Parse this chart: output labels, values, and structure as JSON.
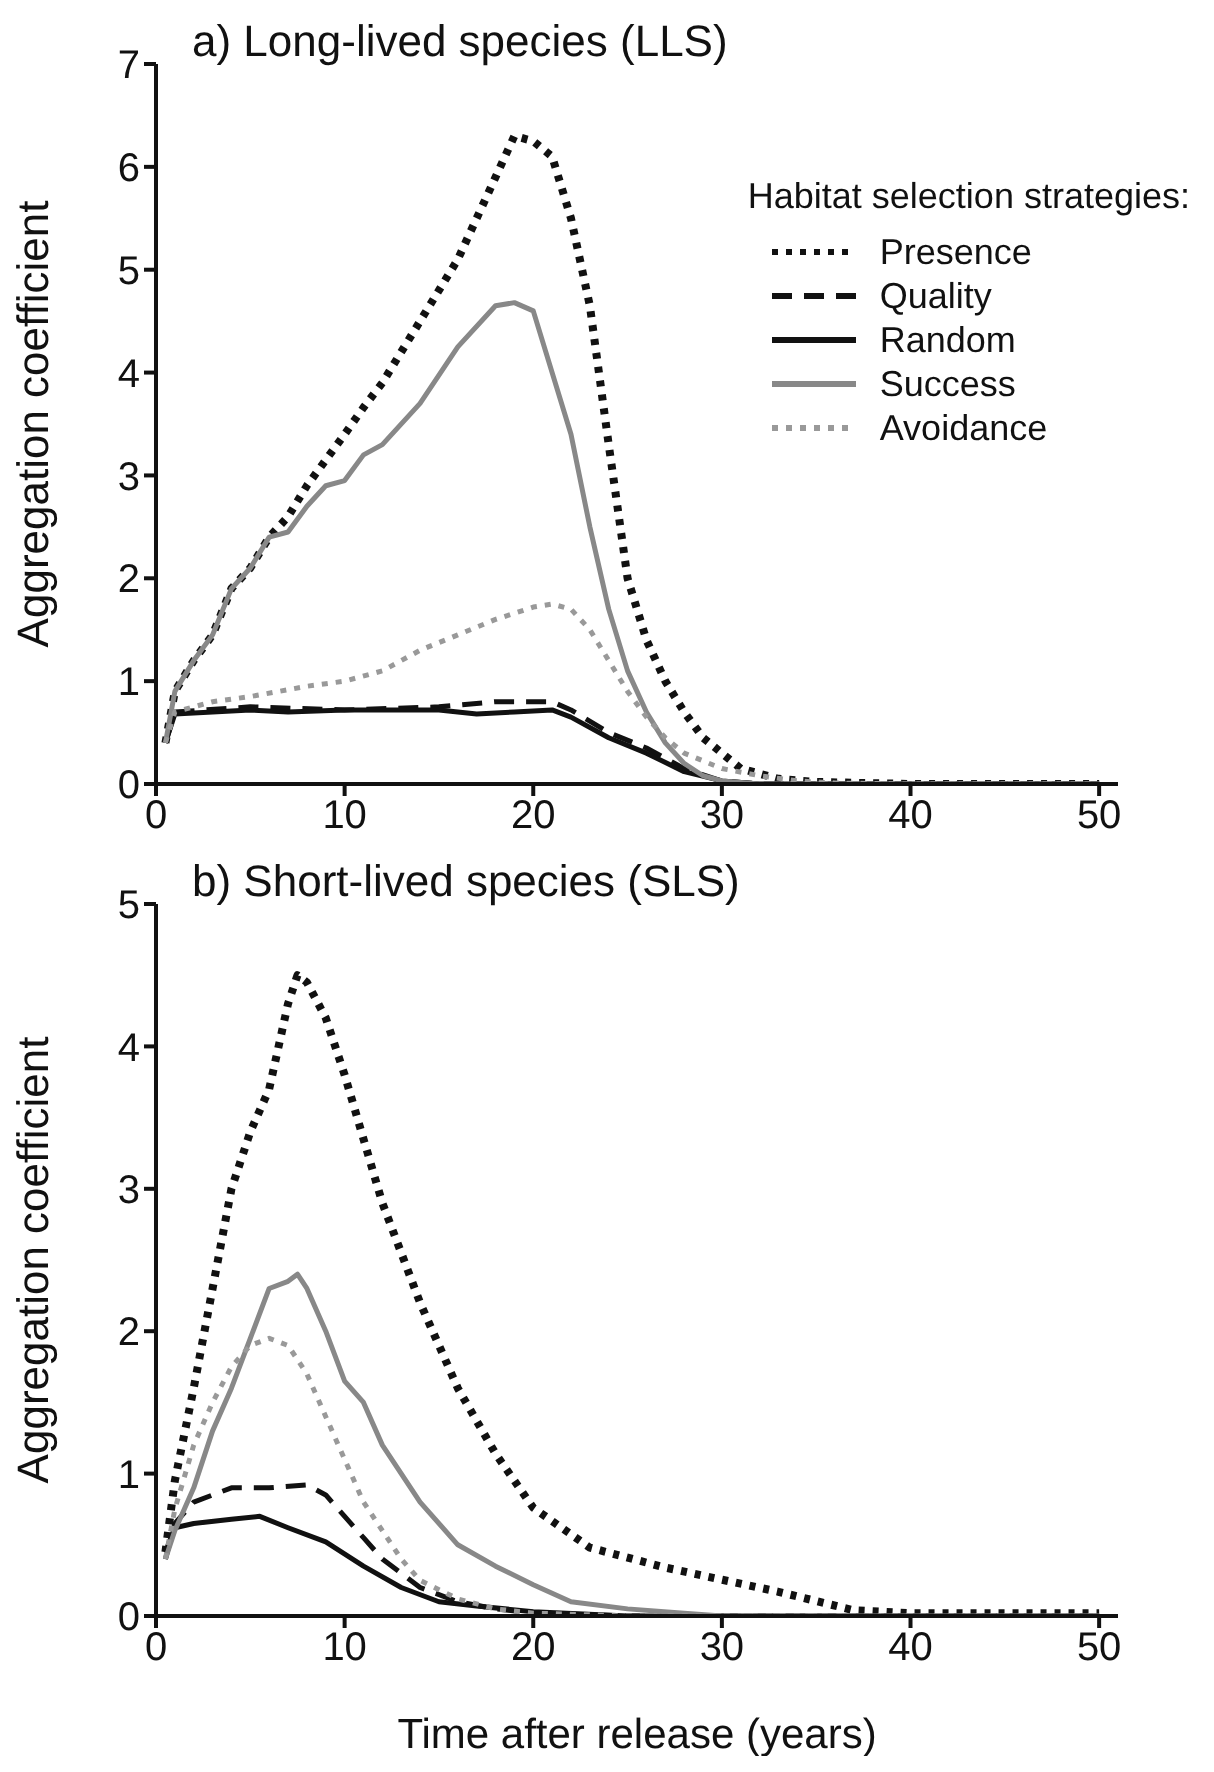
{
  "chart_data": [
    {
      "type": "line",
      "title": "a) Long-lived species (LLS)",
      "ylabel": "Aggregation coefficient",
      "legend_title": "Habitat selection strategies:",
      "legend": "right",
      "marker": "none",
      "xlim": [
        0,
        51
      ],
      "xticks": [
        0,
        10,
        20,
        30,
        40,
        50
      ],
      "ylim": [
        0,
        7
      ],
      "yticks": [
        0,
        1,
        2,
        3,
        4,
        5,
        6,
        7
      ],
      "series": [
        {
          "name": "Presence",
          "color": "#111111",
          "line_style": "dotted",
          "x": [
            0.5,
            1,
            2,
            3,
            4,
            5,
            6,
            7,
            8,
            9,
            10,
            11,
            12,
            14,
            16,
            18,
            19,
            20,
            21,
            22,
            23,
            24,
            25,
            26,
            27,
            28,
            29,
            31,
            33,
            35,
            40,
            45,
            50
          ],
          "values": [
            0.4,
            0.9,
            1.2,
            1.45,
            1.9,
            2.1,
            2.4,
            2.6,
            2.9,
            3.15,
            3.4,
            3.66,
            3.9,
            4.5,
            5.1,
            5.9,
            6.3,
            6.25,
            6.1,
            5.5,
            4.65,
            3.3,
            2.0,
            1.4,
            1.0,
            0.7,
            0.45,
            0.15,
            0.05,
            0.02,
            0,
            0,
            0
          ]
        },
        {
          "name": "Quality",
          "color": "#111111",
          "line_style": "dashed",
          "x": [
            0.5,
            1,
            5,
            10,
            15,
            18,
            21,
            22,
            24,
            26,
            28,
            30,
            32,
            40,
            50
          ],
          "values": [
            0.4,
            0.7,
            0.75,
            0.72,
            0.75,
            0.8,
            0.8,
            0.72,
            0.5,
            0.35,
            0.15,
            0.03,
            0,
            0,
            0
          ]
        },
        {
          "name": "Random",
          "color": "#111111",
          "line_style": "solid",
          "x": [
            0.5,
            1,
            5,
            7,
            10,
            15,
            17,
            19,
            21,
            22,
            24,
            26,
            28,
            30,
            32,
            40,
            50
          ],
          "values": [
            0.4,
            0.68,
            0.72,
            0.7,
            0.72,
            0.72,
            0.68,
            0.7,
            0.72,
            0.65,
            0.45,
            0.3,
            0.12,
            0.03,
            0,
            0,
            0
          ]
        },
        {
          "name": "Success",
          "color": "#888888",
          "line_style": "solid",
          "x": [
            0.5,
            1,
            2,
            3,
            4,
            5,
            6,
            7,
            8,
            9,
            10,
            11,
            12,
            14,
            16,
            18,
            19,
            20,
            22,
            23,
            24,
            25,
            26,
            27,
            28,
            29,
            30,
            32,
            40,
            50
          ],
          "values": [
            0.4,
            0.9,
            1.2,
            1.45,
            1.9,
            2.1,
            2.4,
            2.45,
            2.7,
            2.9,
            2.95,
            3.2,
            3.3,
            3.7,
            4.25,
            4.65,
            4.68,
            4.6,
            3.4,
            2.5,
            1.7,
            1.1,
            0.7,
            0.4,
            0.2,
            0.08,
            0.03,
            0,
            0,
            0
          ]
        },
        {
          "name": "Avoidance",
          "color": "#999999",
          "line_style": "dotted",
          "x": [
            0.5,
            1,
            3,
            5,
            8,
            10,
            12,
            14,
            16,
            18,
            20,
            21,
            22,
            23,
            24,
            25,
            26,
            27,
            28,
            30,
            32,
            34,
            36,
            40,
            50
          ],
          "values": [
            0.4,
            0.7,
            0.8,
            0.85,
            0.95,
            1.0,
            1.1,
            1.3,
            1.45,
            1.6,
            1.72,
            1.75,
            1.7,
            1.5,
            1.2,
            0.9,
            0.65,
            0.45,
            0.3,
            0.15,
            0.08,
            0.03,
            0.01,
            0,
            0
          ]
        }
      ]
    },
    {
      "type": "line",
      "title": "b) Short-lived species (SLS)",
      "xlabel": "Time after release (years)",
      "ylabel": "Aggregation coefficient",
      "marker": "none",
      "xlim": [
        0,
        51
      ],
      "xticks": [
        0,
        10,
        20,
        30,
        40,
        50
      ],
      "ylim": [
        0,
        5
      ],
      "yticks": [
        0,
        1,
        2,
        3,
        4,
        5
      ],
      "series": [
        {
          "color": "#111111",
          "line_style": "dotted",
          "x": [
            0.5,
            1,
            2,
            3,
            4,
            5,
            6,
            7,
            7.5,
            8,
            9,
            10,
            12,
            14,
            16,
            18,
            20,
            23,
            27,
            33,
            37,
            40,
            45,
            50
          ],
          "values": [
            0.45,
            0.95,
            1.6,
            2.3,
            3.0,
            3.4,
            3.7,
            4.3,
            4.5,
            4.45,
            4.2,
            3.8,
            2.9,
            2.2,
            1.6,
            1.14,
            0.76,
            0.48,
            0.34,
            0.17,
            0.04,
            0.02,
            0.02,
            0.02
          ]
        },
        {
          "color": "#111111",
          "line_style": "dashed",
          "x": [
            0.5,
            1,
            2,
            3,
            4,
            6,
            8,
            9,
            10,
            11,
            12,
            13,
            14,
            16,
            18,
            20,
            25,
            50
          ],
          "values": [
            0.4,
            0.65,
            0.8,
            0.85,
            0.9,
            0.9,
            0.92,
            0.85,
            0.7,
            0.55,
            0.4,
            0.3,
            0.2,
            0.1,
            0.05,
            0.02,
            0,
            0
          ]
        },
        {
          "color": "#111111",
          "line_style": "solid",
          "x": [
            0.5,
            1,
            2,
            4,
            5.5,
            7,
            9,
            11,
            13,
            15,
            17,
            20,
            25,
            50
          ],
          "values": [
            0.45,
            0.62,
            0.65,
            0.68,
            0.7,
            0.62,
            0.52,
            0.35,
            0.2,
            0.1,
            0.07,
            0.03,
            0,
            0
          ]
        },
        {
          "color": "#888888",
          "line_style": "solid",
          "x": [
            0.5,
            1,
            2,
            3,
            4,
            5,
            6,
            7,
            7.5,
            8,
            9,
            10,
            11,
            12,
            14,
            16,
            18,
            20,
            22,
            25,
            28,
            30,
            50
          ],
          "values": [
            0.4,
            0.6,
            0.9,
            1.3,
            1.6,
            1.95,
            2.3,
            2.35,
            2.4,
            2.3,
            2.0,
            1.65,
            1.5,
            1.2,
            0.8,
            0.5,
            0.35,
            0.22,
            0.1,
            0.05,
            0.02,
            0,
            0
          ]
        },
        {
          "color": "#999999",
          "line_style": "dotted",
          "x": [
            0.5,
            1,
            2,
            3,
            4,
            5,
            6,
            7,
            8,
            9,
            10,
            11,
            12,
            13,
            14,
            16,
            18,
            20,
            25,
            50
          ],
          "values": [
            0.4,
            0.75,
            1.2,
            1.5,
            1.75,
            1.9,
            1.95,
            1.9,
            1.7,
            1.4,
            1.1,
            0.8,
            0.6,
            0.4,
            0.25,
            0.12,
            0.05,
            0.02,
            0,
            0
          ]
        }
      ]
    }
  ]
}
